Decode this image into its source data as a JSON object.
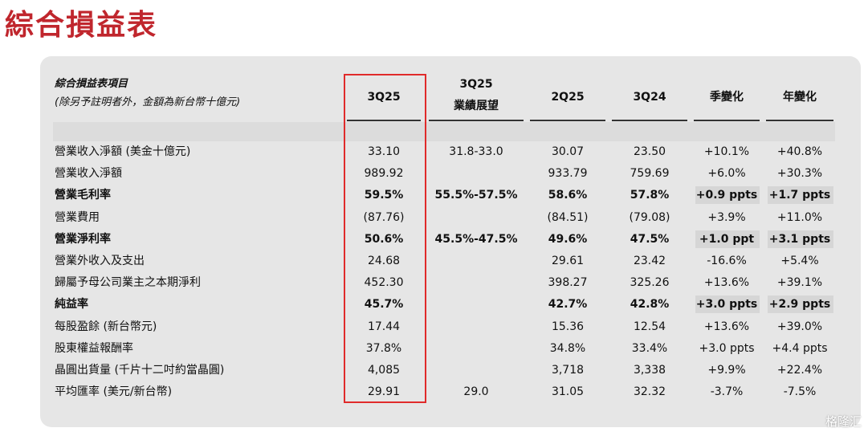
{
  "title": "綜合損益表",
  "table": {
    "header_label": "綜合損益表項目",
    "header_note": "(除另予註明者外，金額為新台幣十億元)",
    "columns": [
      "3Q25",
      [
        "3Q25",
        "業績展望"
      ],
      "2Q25",
      "3Q24",
      "季變化",
      "年變化"
    ],
    "rows": [
      {
        "label": "營業收入淨額 (美金十億元)",
        "bold": false,
        "cells": [
          "33.10",
          "31.8-33.0",
          "30.07",
          "23.50",
          "+10.1%",
          "+40.8%"
        ]
      },
      {
        "label": "營業收入淨額",
        "bold": false,
        "cells": [
          "989.92",
          null,
          "933.79",
          "759.69",
          "+6.0%",
          "+30.3%"
        ]
      },
      {
        "label": "營業毛利率",
        "bold": true,
        "cells": [
          "59.5%",
          "55.5%-57.5%",
          "58.6%",
          "57.8%",
          "+0.9 ppts",
          "+1.7 ppts"
        ]
      },
      {
        "label": "營業費用",
        "bold": false,
        "cells": [
          "(87.76)",
          null,
          "(84.51)",
          "(79.08)",
          "+3.9%",
          "+11.0%"
        ]
      },
      {
        "label": "營業淨利率",
        "bold": true,
        "cells": [
          "50.6%",
          "45.5%-47.5%",
          "49.6%",
          "47.5%",
          "+1.0 ppt",
          "+3.1 ppts"
        ]
      },
      {
        "label": "營業外收入及支出",
        "bold": false,
        "cells": [
          "24.68",
          null,
          "29.61",
          "23.42",
          "-16.6%",
          "+5.4%"
        ]
      },
      {
        "label": "歸屬予母公司業主之本期淨利",
        "bold": false,
        "cells": [
          "452.30",
          null,
          "398.27",
          "325.26",
          "+13.6%",
          "+39.1%"
        ]
      },
      {
        "label": "純益率",
        "bold": true,
        "cells": [
          "45.7%",
          null,
          "42.7%",
          "42.8%",
          "+3.0 ppts",
          "+2.9 ppts"
        ]
      },
      {
        "label": "每股盈餘 (新台幣元)",
        "bold": false,
        "cells": [
          "17.44",
          null,
          "15.36",
          "12.54",
          "+13.6%",
          "+39.0%"
        ]
      },
      {
        "label": "股東權益報酬率",
        "bold": false,
        "cells": [
          "37.8%",
          null,
          "34.8%",
          "33.4%",
          "+3.0 ppts",
          "+4.4 ppts"
        ]
      },
      {
        "label": "晶圓出貨量 (千片十二吋約當晶圓)",
        "bold": false,
        "cells": [
          "4,085",
          null,
          "3,718",
          "3,338",
          "+9.9%",
          "+22.4%"
        ]
      },
      {
        "label": "平均匯率 (美元/新台幣)",
        "bold": false,
        "cells": [
          "29.91",
          "29.0",
          "31.05",
          "32.32",
          "-3.7%",
          "-7.5%"
        ]
      }
    ]
  },
  "watermark": "格隆汇"
}
